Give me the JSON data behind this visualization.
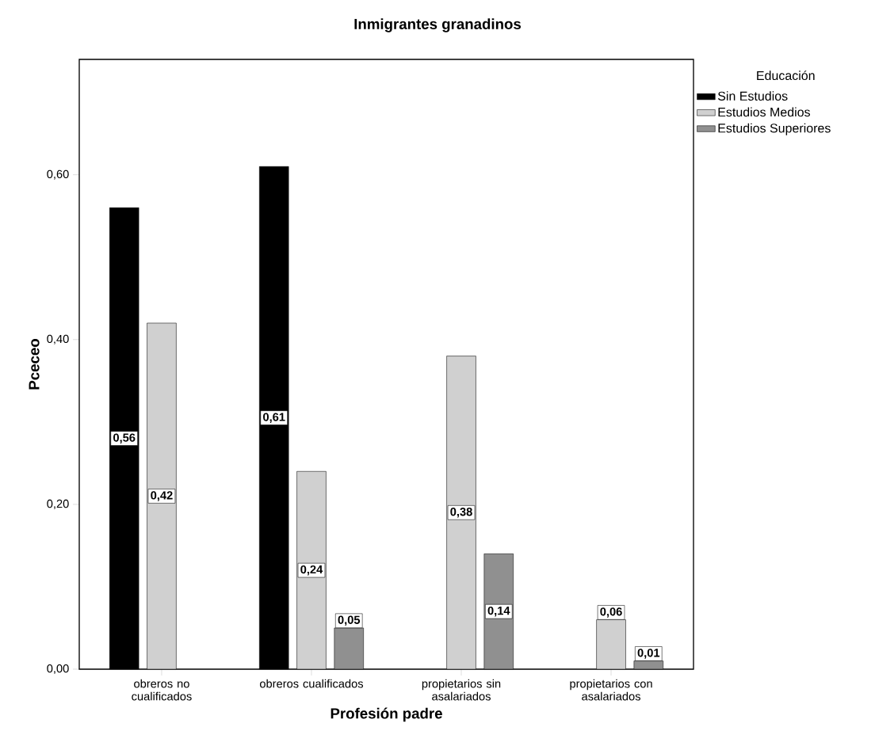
{
  "chart_data": {
    "type": "bar",
    "title": "Inmigrantes granadinos",
    "xlabel": "Profesión padre",
    "ylabel": "Pceceo",
    "legend_title": "Educación",
    "legend": "top right",
    "categories": [
      "obreros no cualificados",
      "obreros cualificados",
      "propietarios sin asalariados",
      "propietarios con asalariados"
    ],
    "series": [
      {
        "name": "Sin Estudios",
        "color": "#000000",
        "values": [
          0.56,
          0.61,
          null,
          null
        ],
        "value_labels": [
          "0,56",
          "0,61",
          null,
          null
        ]
      },
      {
        "name": "Estudios Medios",
        "color": "#d0d0d0",
        "values": [
          0.42,
          0.24,
          0.38,
          0.06
        ],
        "value_labels": [
          "0,42",
          "0,24",
          "0,38",
          "0,06"
        ]
      },
      {
        "name": "Estudios Superiores",
        "color": "#909090",
        "values": [
          null,
          0.05,
          0.14,
          0.01
        ],
        "value_labels": [
          null,
          "0,05",
          "0,14",
          "0,01"
        ]
      }
    ],
    "ylim": [
      0,
      0.74
    ],
    "yticks": [
      {
        "value": 0,
        "label": "0,00"
      },
      {
        "value": 0.2,
        "label": "0,20"
      },
      {
        "value": 0.4,
        "label": "0,40"
      },
      {
        "value": 0.6,
        "label": "0,60"
      }
    ]
  }
}
